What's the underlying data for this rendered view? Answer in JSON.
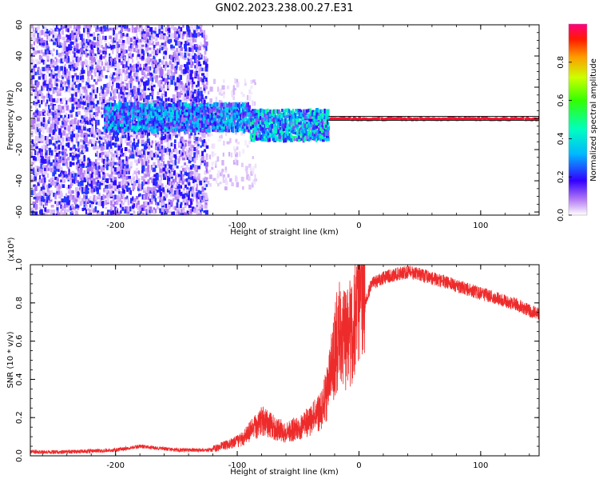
{
  "page_title": "GN02.2023.238.00.27.E31",
  "chart_data": [
    {
      "type": "heatmap",
      "title": "GN02.2023.238.00.27.E31",
      "xlabel": "Height of straight line (km)",
      "ylabel": "Frequency (Hz)",
      "xlim": [
        -270,
        148
      ],
      "ylim": [
        -62,
        60
      ],
      "xticks": [
        -200,
        -100,
        0,
        100
      ],
      "xtick_labels": [
        "-200",
        "-100",
        "0",
        "100"
      ],
      "yticks": [
        -60,
        -40,
        -20,
        0,
        20,
        40,
        60
      ],
      "ytick_labels": [
        "-60",
        "-40",
        "-20",
        "0",
        "20",
        "40",
        "60"
      ],
      "colorbar": {
        "label": "Normalized spectral amplitude",
        "range": [
          0,
          1
        ],
        "ticks": [
          0.0,
          0.2,
          0.4,
          0.6,
          0.8
        ],
        "tick_labels": [
          "0.0",
          "0.2",
          "0.4",
          "0.6",
          "0.8"
        ]
      },
      "bands": [
        {
          "x0": -270,
          "x1": -125,
          "y0": -62,
          "y1": 60,
          "amp": 0.06
        },
        {
          "x0": -125,
          "x1": -85,
          "y0": -45,
          "y1": 25,
          "amp": 0.03
        },
        {
          "x0": -210,
          "x1": -90,
          "y0": -8,
          "y1": 10,
          "amp": 0.25
        },
        {
          "x0": -90,
          "x1": -25,
          "y0": -14,
          "y1": 6,
          "amp": 0.3
        },
        {
          "x0": -25,
          "x1": 148,
          "y0": -0.8,
          "y1": 0.8,
          "amp": 0.95
        }
      ],
      "grid": false
    },
    {
      "type": "line",
      "xlabel": "Height of straight line (km)",
      "ylabel": "SNR (10 * v/v)",
      "y_multiplier": "(x10⁴)",
      "xlim": [
        -270,
        148
      ],
      "ylim": [
        0,
        1.0
      ],
      "xticks": [
        -200,
        -100,
        0,
        100
      ],
      "xtick_labels": [
        "-200",
        "-100",
        "0",
        "100"
      ],
      "yticks": [
        0.0,
        0.2,
        0.4,
        0.6,
        0.8,
        1.0
      ],
      "ytick_labels": [
        "0.0",
        "0.2",
        "0.4",
        "0.6",
        "0.8",
        "1.0"
      ],
      "color": "#ee2b2b",
      "x": [
        -270,
        -240,
        -200,
        -180,
        -150,
        -120,
        -100,
        -90,
        -80,
        -70,
        -60,
        -50,
        -40,
        -30,
        -25,
        -20,
        -15,
        -10,
        -5,
        0,
        5,
        10,
        20,
        30,
        40,
        50,
        60,
        70,
        80,
        90,
        100,
        110,
        120,
        130,
        140,
        148
      ],
      "y": [
        0.02,
        0.02,
        0.03,
        0.05,
        0.03,
        0.03,
        0.06,
        0.1,
        0.15,
        0.12,
        0.1,
        0.12,
        0.15,
        0.2,
        0.3,
        0.45,
        0.55,
        0.5,
        0.55,
        0.65,
        0.8,
        0.9,
        0.93,
        0.95,
        0.96,
        0.95,
        0.93,
        0.91,
        0.89,
        0.87,
        0.85,
        0.83,
        0.81,
        0.79,
        0.76,
        0.74
      ],
      "grid": false
    }
  ]
}
